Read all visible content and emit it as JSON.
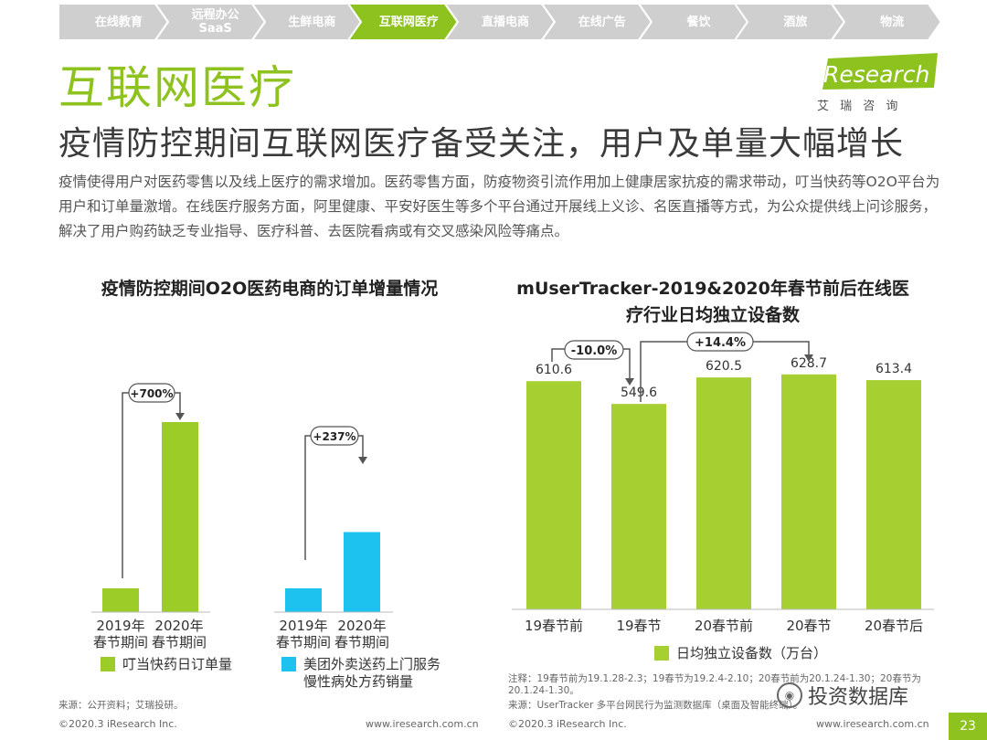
{
  "nav": {
    "items": [
      "在线教育",
      "远程办公\nSaaS",
      "生鲜电商",
      "互联网医疗",
      "直播电商",
      "在线广告",
      "餐饮",
      "酒旅",
      "物流"
    ],
    "active_index": 3,
    "colors": {
      "inactive": "#cfcfcf",
      "active": "#8dc21f"
    }
  },
  "section_title": "互联网医疗",
  "logo": {
    "brand": "iResearch",
    "subtitle": "艾 瑞 咨 询"
  },
  "headline": "疫情防控期间互联网医疗备受关注，用户及单量大幅增长",
  "paragraph": "疫情使得用户对医药零售以及线上医疗的需求增加。医药零售方面，防疫物资引流作用加上健康居家抗疫的需求带动，叮当快药等O2O平台为用户和订单量激增。在线医疗服务方面，阿里健康、平安好医生等多个平台通过开展线上义诊、名医直播等方式，为公众提供线上问诊服务，解决了用户购药缺乏专业指导、医疗科普、去医院看病或有交叉感染风险等痛点。",
  "left_chart": {
    "title": "疫情防控期间O2O医药电商的订单增量情况",
    "source": "来源：公开资料；艾瑞投研。",
    "footer_left": "©2020.3 iResearch Inc.",
    "footer_right": "www.iresearch.com.cn",
    "colors": {
      "green": "#9ccc28",
      "blue": "#1ec2ee"
    }
  },
  "right_chart": {
    "title_line1": "mUserTracker-2019&2020年春节前后在线医",
    "title_line2": "疗行业日均独立设备数",
    "legend": "日均独立设备数（万台）",
    "note": "注释：19春节前为19.1.28-2.3；19春节为19.2.4-2.10；20春节前为20.1.24-1.30；20春节为20.1.24-1.30。",
    "source": "来源：UserTracker 多平台网民行为监测数据库（桌面及智能终端）。",
    "footer_left": "©2020.3 iResearch Inc.",
    "footer_right": "www.iresearch.com.cn",
    "color": "#a6cf32"
  },
  "watermark": "投资数据库",
  "page_number": "23",
  "chart_data": [
    {
      "type": "bar",
      "title": "疫情防控期间O2O医药电商的订单增量情况",
      "groups": [
        {
          "series": "叮当快药日订单量",
          "categories": [
            "2019年\n春节期间",
            "2020年\n春节期间"
          ],
          "values": [
            1,
            8
          ],
          "annotation": "+700%",
          "color": "#9ccc28"
        },
        {
          "series": "美团外卖送药上门服务\n慢性病处方药销量",
          "categories": [
            "2019年\n春节期间",
            "2020年\n春节期间"
          ],
          "values": [
            1,
            3.37
          ],
          "annotation": "+237%",
          "color": "#1ec2ee"
        }
      ]
    },
    {
      "type": "bar",
      "title": "mUserTracker-2019&2020年春节前后在线医疗行业日均独立设备数",
      "categories": [
        "19春节前",
        "19春节",
        "20春节前",
        "20春节",
        "20春节后"
      ],
      "series": [
        {
          "name": "日均独立设备数（万台）",
          "values": [
            610.6,
            549.6,
            620.5,
            628.7,
            613.4
          ]
        }
      ],
      "value_labels": [
        "610.6",
        "549.6",
        "620.5",
        "628.7",
        "613.4"
      ],
      "annotations": [
        "-10.0%",
        "+14.4%"
      ],
      "color": "#a6cf32"
    }
  ]
}
